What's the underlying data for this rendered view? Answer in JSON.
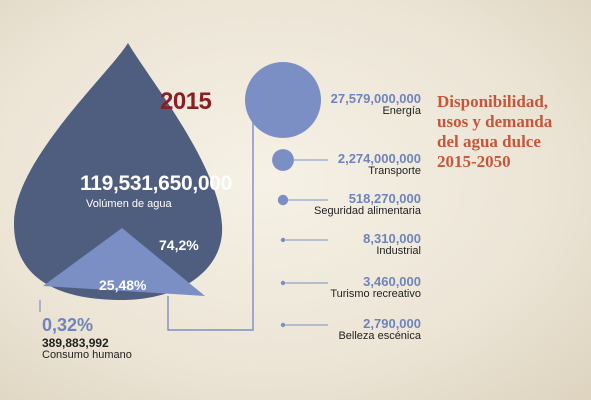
{
  "chart_data": {
    "type": "bubble",
    "title_lines": [
      "Disponibilidad,",
      "usos y demanda",
      "del agua dulce",
      "2015-2050"
    ],
    "year": "2015",
    "total": {
      "value": "119,531,650,000",
      "label": "Volúmen de agua"
    },
    "shares": [
      {
        "pct": "74,2%",
        "pct_value": 74.2
      },
      {
        "pct": "25,48%",
        "pct_value": 25.48
      },
      {
        "pct": "0,32%",
        "pct_value": 0.32,
        "value": "389,883,992",
        "label": "Consumo humano"
      }
    ],
    "uses": [
      {
        "label": "Energía",
        "value_text": "27,579,000,000",
        "value": 27579000000
      },
      {
        "label": "Transporte",
        "value_text": "2,274,000,000",
        "value": 2274000000
      },
      {
        "label": "Seguridad alimentaria",
        "value_text": "518,270,000",
        "value": 518270000
      },
      {
        "label": "Industrial",
        "value_text": "8,310,000",
        "value": 8310000
      },
      {
        "label": "Turismo recreativo",
        "value_text": "3,460,000",
        "value": 3460000
      },
      {
        "label": "Belleza escénica",
        "value_text": "2,790,000",
        "value": 2790000
      }
    ]
  },
  "colors": {
    "drop": "#4f5d7e",
    "wedge": "#7b8fc4",
    "accent": "#6f84bb",
    "year": "#8b1e22",
    "title": "#c8553a"
  }
}
